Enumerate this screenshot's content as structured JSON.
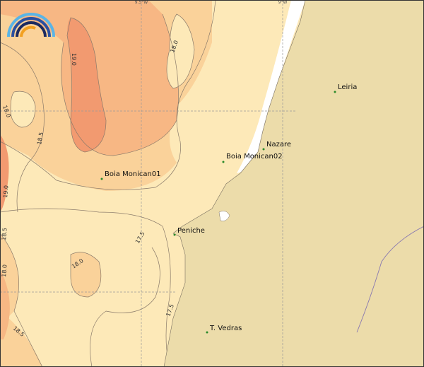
{
  "map": {
    "grid_labels": [
      "9.5°W",
      "9°W"
    ],
    "contour_labels": [
      "19.0",
      "18.0",
      "18.0",
      "18.5",
      "19.0",
      "18.5",
      "18.0",
      "17.5",
      "18.0",
      "17.5",
      "18.5"
    ],
    "places": [
      "Leiria",
      "Nazare",
      "Boia Monican02",
      "Boia Monican01",
      "Peniche",
      "T. Vedras"
    ]
  }
}
